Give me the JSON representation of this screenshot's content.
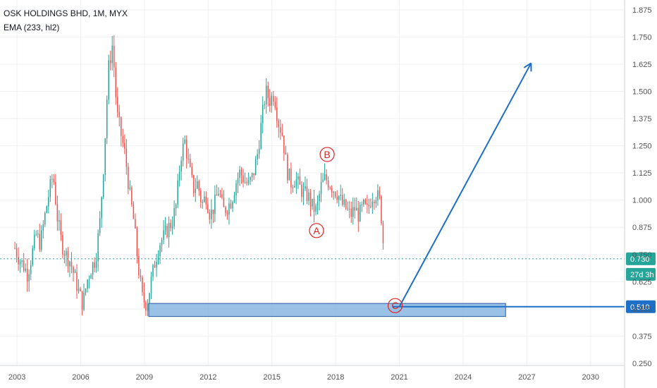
{
  "header": {
    "title": "OSK HOLDINGS BHD, 1M, MYX",
    "indicator": "EMA (233, hl2)"
  },
  "price_tags": {
    "last_price": "0.730",
    "countdown": "27d 3h",
    "target_level": "0.510"
  },
  "annotations": {
    "a": "A",
    "b": "B",
    "c": "C"
  },
  "colors": {
    "up": "#26a69a",
    "down": "#ef5350",
    "accent": "#1e6fc6",
    "zone_fill": "#6fa8dc",
    "last_line": "#26a69a",
    "grid": "#eef0f3",
    "label_red": "#e02020"
  },
  "chart_data": {
    "type": "candlestick",
    "title": "OSK HOLDINGS BHD, 1M, MYX",
    "x_ticks": [
      "2003",
      "2006",
      "2009",
      "2012",
      "2015",
      "2018",
      "2021",
      "2024",
      "2027",
      "2030"
    ],
    "y_ticks": [
      "0.250",
      "0.375",
      "0.500",
      "0.625",
      "0.750",
      "0.875",
      "1.000",
      "1.125",
      "1.250",
      "1.375",
      "1.500",
      "1.625",
      "1.750",
      "1.875"
    ],
    "ylim": [
      0.24,
      1.92
    ],
    "xlim": [
      2002.2,
      2031.6
    ],
    "grid": true,
    "last_price": 0.73,
    "horizontal_level": 0.51,
    "price_path": [
      [
        2002.9,
        0.78
      ],
      [
        2003.1,
        0.73
      ],
      [
        2003.3,
        0.7
      ],
      [
        2003.5,
        0.66
      ],
      [
        2003.7,
        0.75
      ],
      [
        2003.9,
        0.84
      ],
      [
        2004.1,
        0.8
      ],
      [
        2004.3,
        0.92
      ],
      [
        2004.5,
        1.03
      ],
      [
        2004.7,
        1.12
      ],
      [
        2004.9,
        0.92
      ],
      [
        2005.1,
        0.8
      ],
      [
        2005.3,
        0.75
      ],
      [
        2005.5,
        0.72
      ],
      [
        2005.7,
        0.65
      ],
      [
        2005.9,
        0.58
      ],
      [
        2006.1,
        0.52
      ],
      [
        2006.3,
        0.63
      ],
      [
        2006.5,
        0.69
      ],
      [
        2006.7,
        0.73
      ],
      [
        2006.9,
        0.9
      ],
      [
        2007.1,
        1.2
      ],
      [
        2007.3,
        1.6
      ],
      [
        2007.5,
        1.72
      ],
      [
        2007.7,
        1.4
      ],
      [
        2007.9,
        1.3
      ],
      [
        2008.1,
        1.2
      ],
      [
        2008.3,
        1.03
      ],
      [
        2008.5,
        0.9
      ],
      [
        2008.7,
        0.7
      ],
      [
        2008.9,
        0.55
      ],
      [
        2009.1,
        0.52
      ],
      [
        2009.3,
        0.62
      ],
      [
        2009.5,
        0.72
      ],
      [
        2009.7,
        0.8
      ],
      [
        2009.9,
        0.83
      ],
      [
        2010.1,
        0.87
      ],
      [
        2010.3,
        0.9
      ],
      [
        2010.5,
        0.98
      ],
      [
        2010.7,
        1.2
      ],
      [
        2010.9,
        1.27
      ],
      [
        2011.1,
        1.15
      ],
      [
        2011.3,
        1.05
      ],
      [
        2011.5,
        1.08
      ],
      [
        2011.7,
        0.98
      ],
      [
        2011.9,
        1.02
      ],
      [
        2012.1,
        0.93
      ],
      [
        2012.3,
        0.98
      ],
      [
        2012.5,
        1.05
      ],
      [
        2012.7,
        0.95
      ],
      [
        2012.9,
        0.97
      ],
      [
        2013.1,
        1.0
      ],
      [
        2013.3,
        1.08
      ],
      [
        2013.5,
        1.13
      ],
      [
        2013.7,
        1.09
      ],
      [
        2013.9,
        1.07
      ],
      [
        2014.1,
        1.11
      ],
      [
        2014.3,
        1.2
      ],
      [
        2014.5,
        1.35
      ],
      [
        2014.7,
        1.5
      ],
      [
        2014.9,
        1.46
      ],
      [
        2015.1,
        1.49
      ],
      [
        2015.3,
        1.36
      ],
      [
        2015.5,
        1.3
      ],
      [
        2015.7,
        1.14
      ],
      [
        2015.9,
        1.08
      ],
      [
        2016.1,
        1.1
      ],
      [
        2016.3,
        1.06
      ],
      [
        2016.5,
        1.03
      ],
      [
        2016.7,
        1.02
      ],
      [
        2016.9,
        0.97
      ],
      [
        2017.1,
        0.95
      ],
      [
        2017.3,
        1.06
      ],
      [
        2017.5,
        1.1
      ],
      [
        2017.7,
        1.08
      ],
      [
        2017.9,
        1.05
      ],
      [
        2018.1,
        1.03
      ],
      [
        2018.3,
        0.98
      ],
      [
        2018.5,
        0.96
      ],
      [
        2018.7,
        0.93
      ],
      [
        2018.9,
        0.96
      ],
      [
        2019.1,
        0.93
      ],
      [
        2019.3,
        0.97
      ],
      [
        2019.5,
        0.95
      ],
      [
        2019.7,
        1.02
      ],
      [
        2019.9,
        1.03
      ],
      [
        2020.1,
        0.99
      ],
      [
        2020.3,
        0.72
      ]
    ],
    "demand_zone": {
      "x0": 2009.2,
      "x1": 2026.0,
      "y0": 0.465,
      "y1": 0.525
    },
    "forecast_line": [
      [
        2021.0,
        0.51
      ],
      [
        2027.2,
        1.63
      ]
    ],
    "wave_labels": [
      {
        "text": "A",
        "x": 2017.1,
        "y": 0.86
      },
      {
        "text": "B",
        "x": 2017.6,
        "y": 1.21
      },
      {
        "text": "C",
        "x": 2020.8,
        "y": 0.515
      }
    ]
  }
}
